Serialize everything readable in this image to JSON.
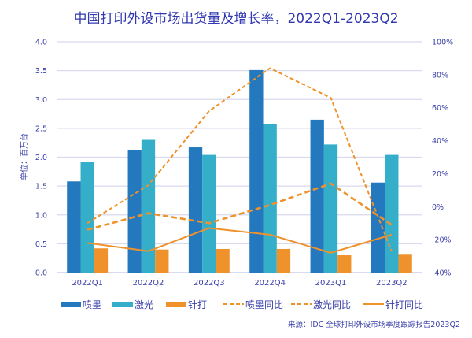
{
  "chart_data": {
    "type": "bar",
    "title": "中国打印外设市场出货量及增长率，2022Q1-2023Q2",
    "ylabel": "单位：百万台",
    "categories": [
      "2022Q1",
      "2022Q2",
      "2022Q3",
      "2022Q4",
      "2023Q1",
      "2023Q2"
    ],
    "ylim": [
      0,
      4.0
    ],
    "yticks": [
      "0.0",
      "0.5",
      "1.0",
      "1.5",
      "2.0",
      "2.5",
      "3.0",
      "3.5",
      "4.0"
    ],
    "ylim_right": [
      -40,
      100
    ],
    "yticks_right": [
      "-40%",
      "-20%",
      "0%",
      "20%",
      "40%",
      "60%",
      "80%",
      "100%"
    ],
    "grid": true,
    "legend_position": "bottom",
    "series": [
      {
        "name": "喷墨",
        "kind": "bar",
        "axis": "left",
        "color": "#2378be",
        "values": [
          1.58,
          2.13,
          2.17,
          3.51,
          2.65,
          1.56
        ]
      },
      {
        "name": "激光",
        "kind": "bar",
        "axis": "left",
        "color": "#35aec9",
        "values": [
          1.92,
          2.3,
          2.04,
          2.57,
          2.22,
          2.04
        ]
      },
      {
        "name": "针打",
        "kind": "bar",
        "axis": "left",
        "color": "#f0922b",
        "values": [
          0.42,
          0.4,
          0.41,
          0.41,
          0.3,
          0.31
        ]
      },
      {
        "name": "喷墨同比",
        "kind": "line",
        "style": "dashed",
        "axis": "right",
        "color": "#f0922b",
        "values": [
          -10,
          13,
          58,
          84,
          66,
          -27
        ]
      },
      {
        "name": "激光同比",
        "kind": "line",
        "style": "dashed-bold",
        "axis": "right",
        "color": "#f0922b",
        "values": [
          -14,
          -4,
          -10,
          1,
          14,
          -11
        ]
      },
      {
        "name": "针打同比",
        "kind": "line",
        "style": "solid",
        "axis": "right",
        "color": "#f0922b",
        "values": [
          -22,
          -27,
          -13,
          -17,
          -28,
          -17
        ]
      }
    ],
    "source": "来源：IDC 全球打印外设市场季度跟踪报告2023Q2"
  }
}
